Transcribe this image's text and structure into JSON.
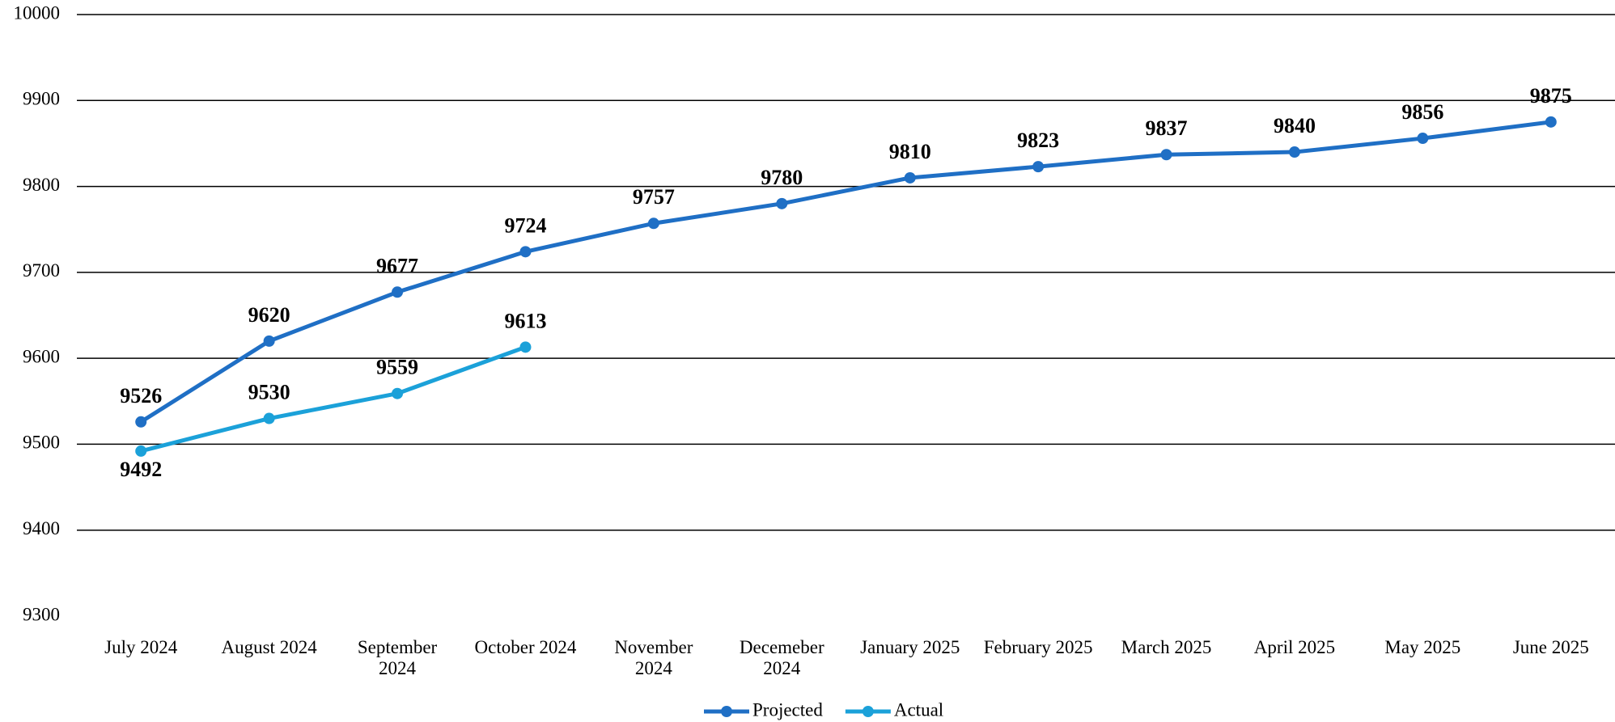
{
  "chart_data": {
    "type": "line",
    "categories": [
      "July 2024",
      "August 2024",
      "September 2024",
      "October 2024",
      "November 2024",
      "Decemeber 2024",
      "January 2025",
      "February 2025",
      "March 2025",
      "April 2025",
      "May 2025",
      "June 2025"
    ],
    "series": [
      {
        "name": "Projected",
        "color": "#1f6fc5",
        "values": [
          9526,
          9620,
          9677,
          9724,
          9757,
          9780,
          9810,
          9823,
          9837,
          9840,
          9856,
          9875
        ]
      },
      {
        "name": "Actual",
        "color": "#1ba1d9",
        "values": [
          9492,
          9530,
          9559,
          9613,
          null,
          null,
          null,
          null,
          null,
          null,
          null,
          null
        ]
      }
    ],
    "ylim": [
      9300,
      10000
    ],
    "yticks": [
      9300,
      9400,
      9500,
      9600,
      9700,
      9800,
      9900,
      10000
    ],
    "grid": true,
    "legend": "bottom"
  }
}
